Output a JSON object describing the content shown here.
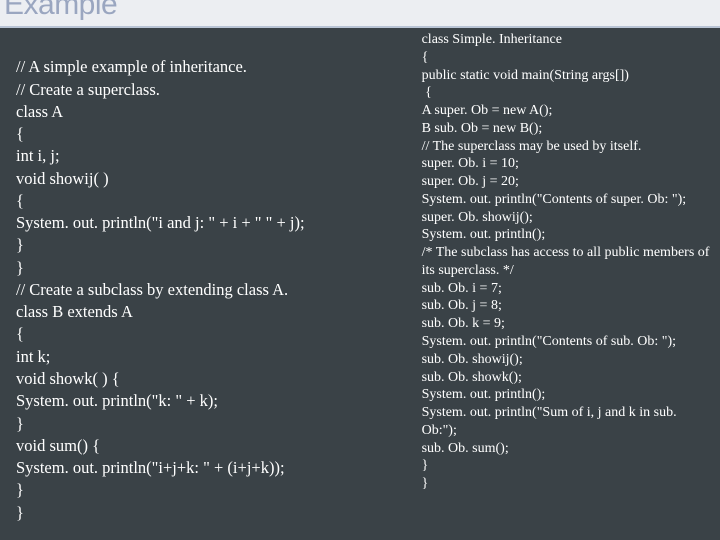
{
  "header": {
    "title": "Example"
  },
  "left": {
    "lines": [
      "",
      "// A simple example of inheritance.",
      "// Create a superclass.",
      "class A",
      "{",
      "int i, j;",
      "void showij( )",
      "{",
      "System. out. println(\"i and j: \" + i + \" \" + j);",
      "}",
      "}",
      "// Create a subclass by extending class A.",
      "class B extends A",
      "{",
      "int k;",
      "void showk( ) {",
      "System. out. println(\"k: \" + k);",
      "}",
      "void sum() {",
      "System. out. println(\"i+j+k: \" + (i+j+k));",
      "}",
      "}"
    ]
  },
  "right": {
    "lines": [
      "class Simple. Inheritance",
      "{",
      "public static void main(String args[])",
      " {",
      "A super. Ob = new A();",
      "B sub. Ob = new B();",
      "// The superclass may be used by itself.",
      "super. Ob. i = 10;",
      "super. Ob. j = 20;",
      "System. out. println(\"Contents of super. Ob: \");",
      "super. Ob. showij();",
      "System. out. println();",
      "/* The subclass has access to all public members of",
      "its superclass. */",
      "sub. Ob. i = 7;",
      "sub. Ob. j = 8;",
      "sub. Ob. k = 9;",
      "System. out. println(\"Contents of sub. Ob: \");",
      "sub. Ob. showij();",
      "sub. Ob. showk();",
      "System. out. println();",
      "System. out. println(\"Sum of i, j and k in sub. Ob:\");",
      "sub. Ob. sum();",
      "}",
      "}"
    ]
  }
}
